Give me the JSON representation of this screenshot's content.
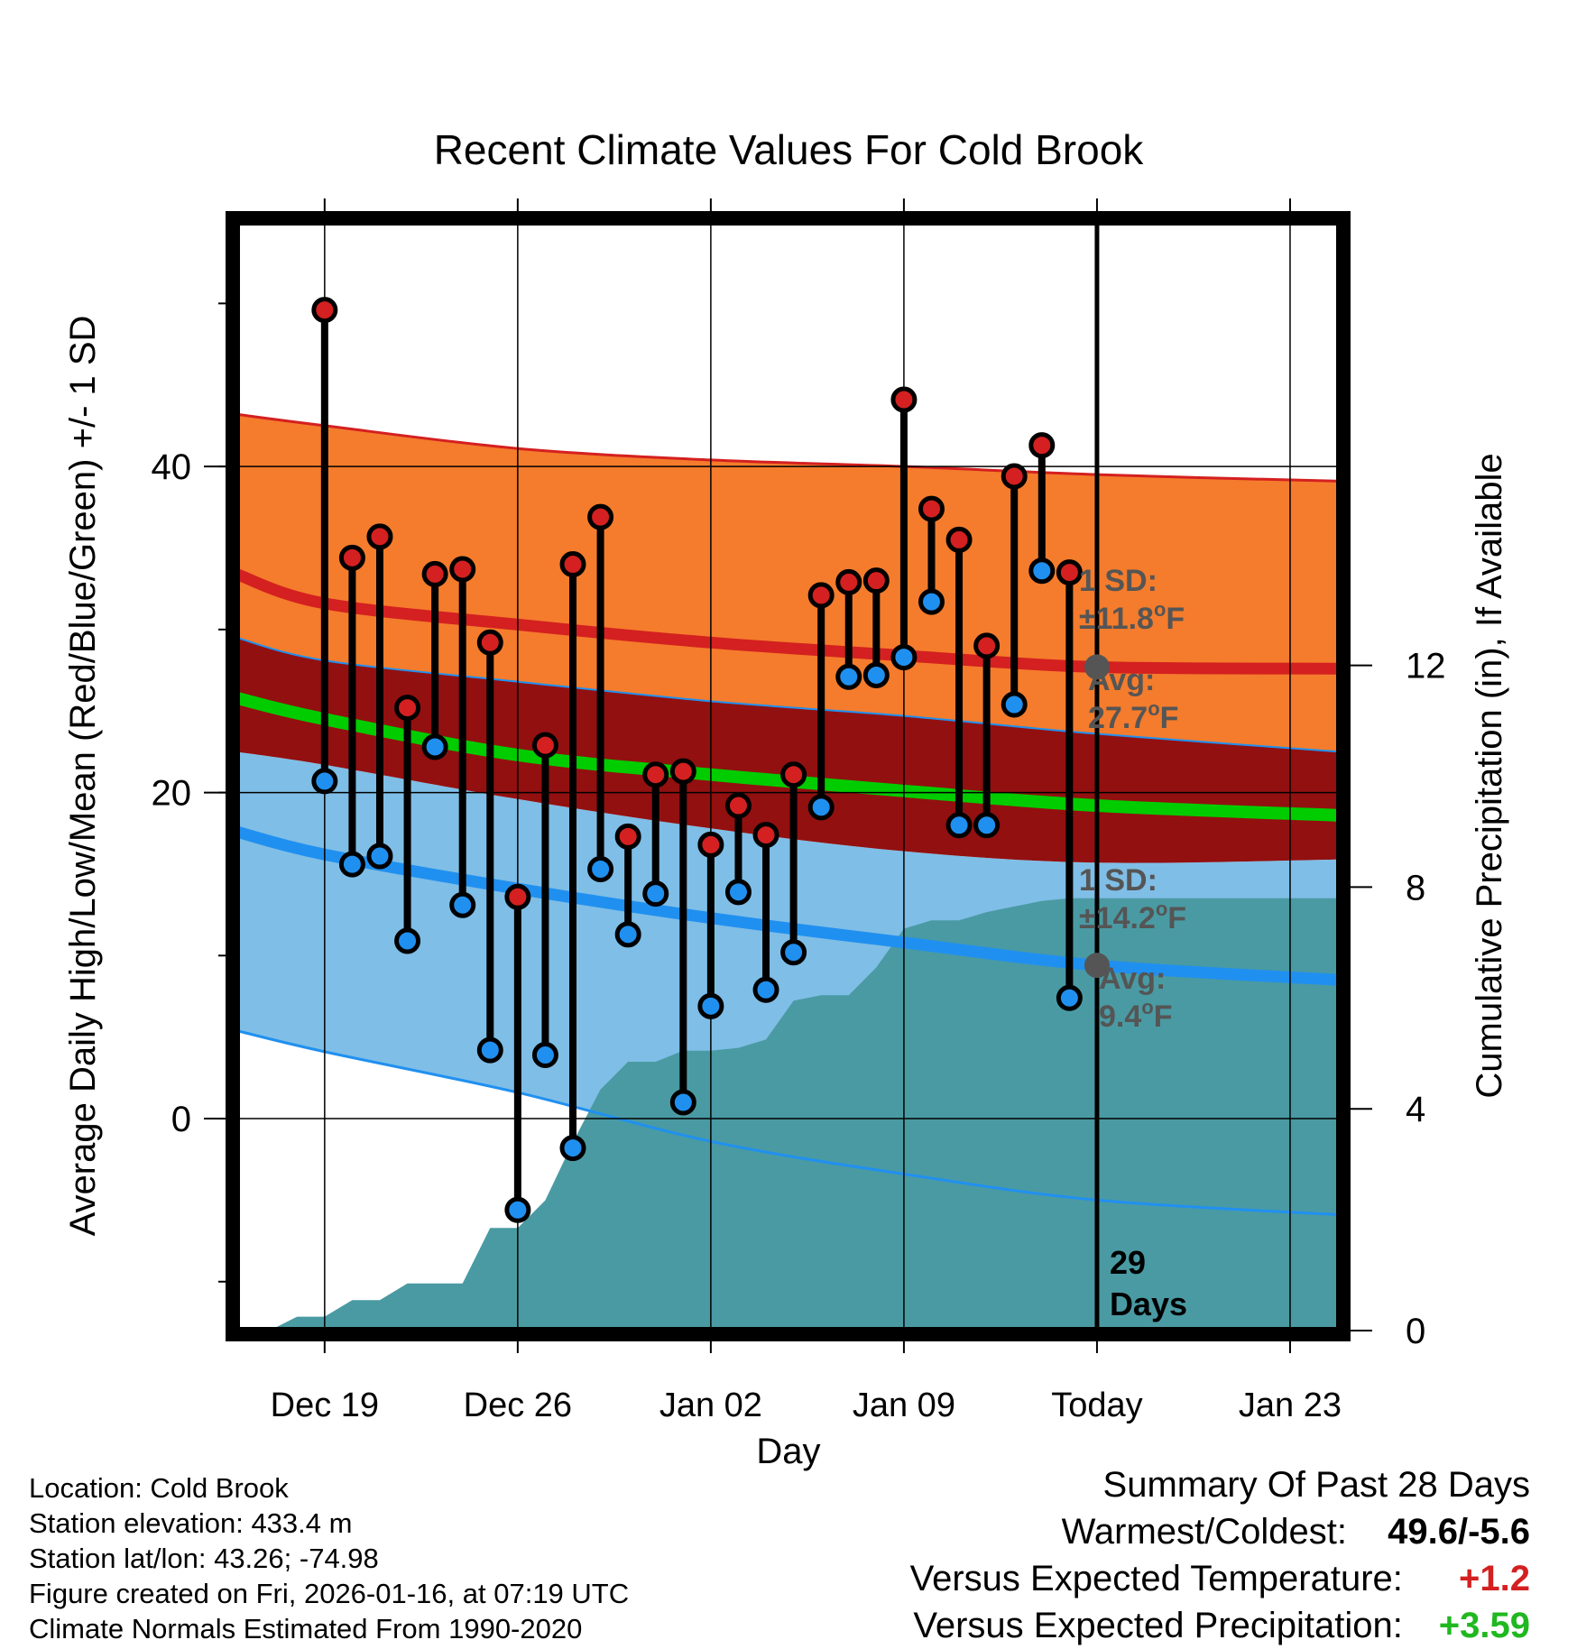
{
  "chart_data": {
    "type": "line",
    "title": "Recent Climate Values For Cold Brook",
    "xlabel": "Day",
    "ylabel": "Average Daily High/Low/Mean (Red/Blue/Green) +/- 1 SD",
    "y2label": "Cumulative Precipitation (in), If Available",
    "x_tick_labels": [
      "Dec 19",
      "Dec 26",
      "Jan 02",
      "Jan 09",
      "Today",
      "Jan 23"
    ],
    "x_tick_days": [
      1,
      8,
      15,
      22,
      29,
      36
    ],
    "xlim": [
      -2.2,
      37.8
    ],
    "ylim": [
      -13,
      55
    ],
    "y_ticks": [
      -10,
      0,
      10,
      20,
      30,
      40,
      50
    ],
    "y_tick_labels": [
      "0",
      "20",
      "40"
    ],
    "y_tick_label_values": [
      0,
      20,
      40
    ],
    "y2lim": [
      0,
      20
    ],
    "y2_tick_labels": [
      "0",
      "4",
      "8",
      "12"
    ],
    "y2_tick_values": [
      0,
      4,
      8,
      12
    ],
    "today_day": 29,
    "today_label_num": "29",
    "today_label_text": "Days",
    "normals": {
      "days": [
        -2.2,
        1,
        8,
        15,
        22,
        29,
        37.8
      ],
      "high_mean": [
        33.4,
        31.6,
        30.3,
        29.2,
        28.4,
        27.7,
        27.6
      ],
      "high_upper": [
        43.2,
        42.5,
        41.1,
        40.4,
        40.0,
        39.5,
        39.1
      ],
      "high_lower": [
        29.5,
        28.1,
        26.8,
        25.6,
        24.7,
        23.6,
        22.5
      ],
      "mean": [
        25.8,
        24.5,
        22.3,
        21.1,
        20.1,
        19.2,
        18.6
      ],
      "low_mean": [
        17.6,
        16.2,
        14.1,
        12.3,
        10.8,
        9.4,
        8.5
      ],
      "low_upper": [
        22.5,
        21.7,
        19.6,
        17.8,
        16.4,
        15.7,
        15.9
      ],
      "low_lower": [
        5.4,
        4.1,
        1.6,
        -1.4,
        -3.4,
        -5.0,
        -5.9
      ]
    },
    "series": [
      {
        "name": "High",
        "color": "#d42020",
        "values": [
          49.6,
          34.4,
          35.7,
          25.2,
          33.4,
          33.7,
          29.2,
          13.6,
          22.9,
          34.0,
          36.9,
          17.3,
          21.1,
          21.3,
          16.8,
          19.2,
          17.4,
          21.1,
          32.1,
          32.9,
          33.0,
          44.1,
          37.4,
          35.5,
          29.0,
          39.4,
          41.3,
          33.5
        ]
      },
      {
        "name": "Low",
        "color": "#2090f0",
        "values": [
          20.7,
          15.6,
          16.1,
          10.9,
          22.8,
          13.1,
          4.2,
          -5.6,
          3.9,
          -1.8,
          15.3,
          11.3,
          13.8,
          1.0,
          6.9,
          13.9,
          7.9,
          10.2,
          19.1,
          27.1,
          27.2,
          28.3,
          31.7,
          18.0,
          18.0,
          25.4,
          33.6,
          7.4
        ]
      }
    ],
    "precip_days": [
      -1,
      0,
      1,
      2,
      3,
      4,
      5,
      6,
      7,
      8,
      9,
      10,
      11,
      12,
      13,
      14,
      15,
      16,
      17,
      18,
      19,
      20,
      21,
      22,
      23,
      24,
      25,
      26,
      27,
      28,
      29,
      37.8
    ],
    "precip_values": [
      0,
      0.25,
      0.25,
      0.55,
      0.55,
      0.85,
      0.85,
      0.85,
      1.85,
      1.85,
      2.35,
      3.4,
      4.35,
      4.85,
      4.85,
      5.05,
      5.05,
      5.1,
      5.25,
      5.95,
      6.05,
      6.05,
      6.55,
      7.25,
      7.4,
      7.4,
      7.55,
      7.65,
      7.75,
      7.8,
      7.8,
      7.8
    ],
    "annotations": {
      "high_sd_label": "1 SD:",
      "high_sd_value": "±11.8",
      "high_avg_label": "Avg:",
      "high_avg_value": "27.7",
      "low_sd_label": "1 SD:",
      "low_sd_value": "±14.2",
      "low_avg_label": "Avg:",
      "low_avg_value": "9.4",
      "unit_degree": "o",
      "unit_f": "F"
    },
    "colors": {
      "high_band": "#f47c2c",
      "overlap_band": "#921010",
      "low_band": "#7fbee6",
      "high_line": "#d42020",
      "low_line": "#2090f0",
      "mean_line": "#00cc00",
      "precip": "#4a9aa3",
      "annotation": "#555555"
    }
  },
  "footer": {
    "location": "Location: Cold Brook",
    "elevation": "Station elevation: 433.4 m",
    "latlon": "Station lat/lon: 43.26; -74.98",
    "created": "Figure created on Fri, 2026-01-16, at 07:19 UTC",
    "normals": "Climate Normals Estimated From 1990-2020"
  },
  "summary": {
    "title": "Summary Of Past 28 Days",
    "warmest_coldest_label": "Warmest/Coldest:",
    "warmest_coldest_value": "49.6/-5.6",
    "temp_label": "Versus Expected Temperature:",
    "temp_value": "+1.2",
    "temp_color": "#d42020",
    "precip_label": "Versus Expected Precipitation:",
    "precip_value": "+3.59",
    "precip_color": "#20b820"
  }
}
